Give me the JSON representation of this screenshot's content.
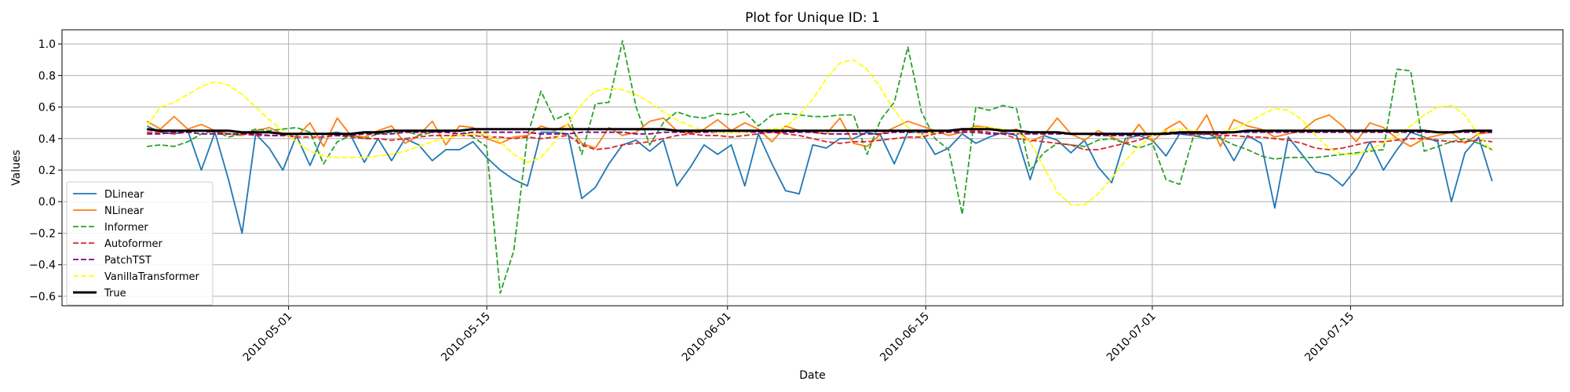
{
  "chart_data": {
    "type": "line",
    "title": "Plot for Unique ID: 1",
    "xlabel": "Date",
    "ylabel": "Values",
    "x_start": "2010-04-21",
    "x_end": "2010-07-25",
    "xlim": [
      "2010-04-15",
      "2010-07-30"
    ],
    "ylim": [
      -0.66,
      1.09
    ],
    "x_ticks": [
      "2010-05-01",
      "2010-05-15",
      "2010-06-01",
      "2010-06-15",
      "2010-07-01",
      "2010-07-15"
    ],
    "y_ticks": [
      -0.6,
      -0.4,
      -0.2,
      0.0,
      0.2,
      0.4,
      0.6,
      0.8,
      1.0
    ],
    "y_tick_labels": [
      "−0.6",
      "−0.4",
      "−0.2",
      "0.0",
      "0.2",
      "0.4",
      "0.6",
      "0.8",
      "1.0"
    ],
    "grid": true,
    "legend_position": "lower-left",
    "series": [
      {
        "name": "DLinear",
        "color": "#1f77b4",
        "dash": "solid",
        "values": [
          0.48,
          0.44,
          0.43,
          0.45,
          0.2,
          0.44,
          0.14,
          -0.2,
          0.43,
          0.34,
          0.2,
          0.42,
          0.23,
          0.43,
          0.44,
          0.42,
          0.25,
          0.4,
          0.26,
          0.4,
          0.36,
          0.26,
          0.33,
          0.33,
          0.38,
          0.28,
          0.2,
          0.14,
          0.1,
          0.44,
          0.44,
          0.43,
          0.02,
          0.09,
          0.24,
          0.36,
          0.39,
          0.32,
          0.39,
          0.1,
          0.22,
          0.36,
          0.3,
          0.36,
          0.1,
          0.43,
          0.24,
          0.07,
          0.05,
          0.36,
          0.34,
          0.4,
          0.4,
          0.44,
          0.42,
          0.24,
          0.44,
          0.44,
          0.3,
          0.34,
          0.43,
          0.37,
          0.41,
          0.44,
          0.42,
          0.14,
          0.42,
          0.39,
          0.31,
          0.39,
          0.22,
          0.12,
          0.4,
          0.42,
          0.39,
          0.29,
          0.43,
          0.42,
          0.4,
          0.41,
          0.26,
          0.42,
          0.37,
          -0.04,
          0.41,
          0.3,
          0.19,
          0.17,
          0.1,
          0.21,
          0.38,
          0.2,
          0.33,
          0.44,
          0.41,
          0.38,
          0.0,
          0.31,
          0.41,
          0.13
        ]
      },
      {
        "name": "NLinear",
        "color": "#ff7f0e",
        "dash": "solid",
        "values": [
          0.51,
          0.46,
          0.54,
          0.46,
          0.49,
          0.45,
          0.43,
          0.42,
          0.45,
          0.47,
          0.43,
          0.41,
          0.5,
          0.35,
          0.53,
          0.42,
          0.41,
          0.45,
          0.48,
          0.37,
          0.42,
          0.51,
          0.36,
          0.48,
          0.47,
          0.4,
          0.37,
          0.41,
          0.42,
          0.48,
          0.45,
          0.49,
          0.37,
          0.34,
          0.47,
          0.42,
          0.44,
          0.51,
          0.53,
          0.45,
          0.43,
          0.46,
          0.52,
          0.45,
          0.5,
          0.46,
          0.38,
          0.48,
          0.45,
          0.44,
          0.43,
          0.53,
          0.37,
          0.35,
          0.43,
          0.47,
          0.51,
          0.48,
          0.45,
          0.42,
          0.44,
          0.48,
          0.47,
          0.44,
          0.46,
          0.38,
          0.42,
          0.53,
          0.43,
          0.39,
          0.45,
          0.41,
          0.37,
          0.49,
          0.38,
          0.46,
          0.51,
          0.42,
          0.55,
          0.35,
          0.52,
          0.48,
          0.46,
          0.41,
          0.43,
          0.45,
          0.52,
          0.55,
          0.48,
          0.38,
          0.5,
          0.47,
          0.4,
          0.35,
          0.4,
          0.42,
          0.44,
          0.37,
          0.43,
          0.44
        ]
      },
      {
        "name": "Informer",
        "color": "#2ca02c",
        "dash": "dashed",
        "values": [
          0.35,
          0.36,
          0.35,
          0.38,
          0.43,
          0.45,
          0.41,
          0.43,
          0.46,
          0.45,
          0.46,
          0.47,
          0.44,
          0.24,
          0.38,
          0.42,
          0.4,
          0.43,
          0.44,
          0.45,
          0.42,
          0.44,
          0.45,
          0.45,
          0.41,
          0.35,
          -0.58,
          -0.31,
          0.42,
          0.7,
          0.52,
          0.56,
          0.3,
          0.62,
          0.63,
          1.02,
          0.6,
          0.36,
          0.5,
          0.57,
          0.54,
          0.53,
          0.56,
          0.55,
          0.57,
          0.48,
          0.55,
          0.56,
          0.55,
          0.54,
          0.54,
          0.55,
          0.55,
          0.3,
          0.52,
          0.63,
          0.98,
          0.57,
          0.4,
          0.33,
          -0.08,
          0.6,
          0.58,
          0.61,
          0.59,
          0.2,
          0.31,
          0.37,
          0.36,
          0.35,
          0.39,
          0.4,
          0.37,
          0.34,
          0.37,
          0.14,
          0.11,
          0.41,
          0.43,
          0.4,
          0.36,
          0.33,
          0.29,
          0.27,
          0.28,
          0.28,
          0.28,
          0.29,
          0.3,
          0.31,
          0.32,
          0.33,
          0.84,
          0.83,
          0.32,
          0.35,
          0.38,
          0.4,
          0.37,
          0.33
        ]
      },
      {
        "name": "Autoformer",
        "color": "#d62728",
        "dash": "dashed",
        "values": [
          0.44,
          0.44,
          0.43,
          0.44,
          0.45,
          0.44,
          0.43,
          0.43,
          0.42,
          0.42,
          0.42,
          0.41,
          0.41,
          0.41,
          0.42,
          0.41,
          0.4,
          0.4,
          0.39,
          0.4,
          0.41,
          0.42,
          0.42,
          0.42,
          0.42,
          0.41,
          0.41,
          0.4,
          0.41,
          0.4,
          0.41,
          0.42,
          0.36,
          0.33,
          0.34,
          0.36,
          0.37,
          0.38,
          0.4,
          0.42,
          0.43,
          0.42,
          0.42,
          0.41,
          0.42,
          0.43,
          0.44,
          0.43,
          0.42,
          0.4,
          0.38,
          0.37,
          0.38,
          0.38,
          0.39,
          0.4,
          0.41,
          0.41,
          0.43,
          0.44,
          0.45,
          0.45,
          0.44,
          0.43,
          0.4,
          0.39,
          0.38,
          0.37,
          0.36,
          0.33,
          0.33,
          0.35,
          0.37,
          0.39,
          0.42,
          0.44,
          0.44,
          0.43,
          0.43,
          0.42,
          0.42,
          0.41,
          0.41,
          0.4,
          0.39,
          0.37,
          0.34,
          0.33,
          0.34,
          0.36,
          0.38,
          0.38,
          0.39,
          0.4,
          0.4,
          0.39,
          0.38,
          0.38,
          0.39,
          0.38
        ]
      },
      {
        "name": "PatchTST",
        "color": "#800080",
        "dash": "dashed",
        "values": [
          0.43,
          0.43,
          0.44,
          0.44,
          0.43,
          0.43,
          0.43,
          0.43,
          0.43,
          0.42,
          0.42,
          0.43,
          0.43,
          0.43,
          0.42,
          0.42,
          0.43,
          0.43,
          0.43,
          0.44,
          0.44,
          0.44,
          0.44,
          0.43,
          0.44,
          0.44,
          0.44,
          0.44,
          0.44,
          0.43,
          0.43,
          0.43,
          0.44,
          0.44,
          0.44,
          0.44,
          0.43,
          0.43,
          0.44,
          0.44,
          0.44,
          0.44,
          0.44,
          0.44,
          0.44,
          0.44,
          0.44,
          0.44,
          0.44,
          0.44,
          0.43,
          0.43,
          0.43,
          0.43,
          0.43,
          0.44,
          0.44,
          0.44,
          0.44,
          0.44,
          0.44,
          0.44,
          0.43,
          0.43,
          0.43,
          0.43,
          0.43,
          0.43,
          0.43,
          0.43,
          0.42,
          0.42,
          0.42,
          0.42,
          0.43,
          0.43,
          0.43,
          0.43,
          0.43,
          0.43,
          0.44,
          0.44,
          0.44,
          0.44,
          0.44,
          0.44,
          0.44,
          0.44,
          0.44,
          0.44,
          0.44,
          0.44,
          0.44,
          0.44,
          0.44,
          0.44,
          0.44,
          0.44,
          0.44,
          0.44
        ]
      },
      {
        "name": "VanillaTransformer",
        "color": "#ffff00",
        "dash": "dashed",
        "values": [
          0.48,
          0.6,
          0.63,
          0.68,
          0.73,
          0.76,
          0.74,
          0.68,
          0.6,
          0.52,
          0.45,
          0.38,
          0.32,
          0.29,
          0.28,
          0.28,
          0.28,
          0.29,
          0.3,
          0.32,
          0.35,
          0.38,
          0.4,
          0.42,
          0.43,
          0.43,
          0.38,
          0.3,
          0.25,
          0.28,
          0.38,
          0.5,
          0.62,
          0.7,
          0.72,
          0.71,
          0.68,
          0.63,
          0.57,
          0.52,
          0.48,
          0.45,
          0.44,
          0.44,
          0.44,
          0.45,
          0.46,
          0.47,
          0.55,
          0.65,
          0.78,
          0.88,
          0.9,
          0.84,
          0.72,
          0.58,
          0.47,
          0.42,
          0.44,
          0.45,
          0.46,
          0.47,
          0.47,
          0.46,
          0.44,
          0.38,
          0.22,
          0.06,
          -0.02,
          -0.02,
          0.05,
          0.15,
          0.26,
          0.35,
          0.42,
          0.45,
          0.46,
          0.45,
          0.44,
          0.44,
          0.46,
          0.5,
          0.55,
          0.59,
          0.58,
          0.52,
          0.42,
          0.34,
          0.3,
          0.3,
          0.33,
          0.37,
          0.42,
          0.48,
          0.55,
          0.6,
          0.61,
          0.55,
          0.42,
          0.32
        ]
      },
      {
        "name": "True",
        "color": "#000000",
        "dash": "solid",
        "bold": true,
        "values": [
          0.46,
          0.45,
          0.45,
          0.45,
          0.45,
          0.45,
          0.45,
          0.44,
          0.44,
          0.44,
          0.43,
          0.43,
          0.43,
          0.43,
          0.43,
          0.43,
          0.44,
          0.44,
          0.45,
          0.45,
          0.45,
          0.45,
          0.45,
          0.45,
          0.46,
          0.46,
          0.46,
          0.46,
          0.46,
          0.46,
          0.46,
          0.46,
          0.46,
          0.46,
          0.46,
          0.46,
          0.46,
          0.46,
          0.46,
          0.45,
          0.45,
          0.45,
          0.45,
          0.45,
          0.45,
          0.45,
          0.45,
          0.45,
          0.45,
          0.45,
          0.45,
          0.45,
          0.45,
          0.45,
          0.45,
          0.45,
          0.45,
          0.45,
          0.45,
          0.45,
          0.46,
          0.46,
          0.46,
          0.45,
          0.45,
          0.44,
          0.44,
          0.44,
          0.43,
          0.43,
          0.43,
          0.43,
          0.43,
          0.43,
          0.43,
          0.43,
          0.44,
          0.44,
          0.44,
          0.44,
          0.44,
          0.45,
          0.45,
          0.45,
          0.45,
          0.45,
          0.45,
          0.45,
          0.45,
          0.45,
          0.45,
          0.45,
          0.45,
          0.45,
          0.45,
          0.44,
          0.44,
          0.45,
          0.45,
          0.45
        ]
      }
    ]
  }
}
